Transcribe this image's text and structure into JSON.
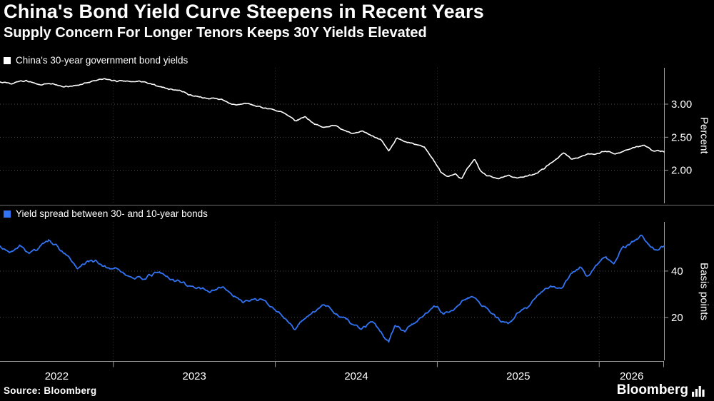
{
  "header": {
    "title": "China's Bond Yield Curve Steepens in Recent Years",
    "subtitle": "Supply Concern For Longer Tenors Keeps 30Y Yields Elevated"
  },
  "footer": {
    "source": "Source: Bloomberg",
    "brand": "Bloomberg"
  },
  "colors": {
    "background": "#000000",
    "text": "#ffffff",
    "grid": "#4a4a4a",
    "year_grid": "#323232",
    "axis": "#9b9b9b",
    "top_line": "#ffffff",
    "bottom_line": "#3173f2"
  },
  "x_axis": {
    "domain": [
      2022.3,
      2026.4
    ],
    "year_ticks": [
      2023,
      2024,
      2025,
      2026
    ],
    "labels": [
      "2022",
      "2023",
      "2024",
      "2025",
      "2026"
    ]
  },
  "chart_data": [
    {
      "type": "line",
      "title": "China's 30-year government bond yields",
      "ylabel": "Percent",
      "ylim": [
        1.5,
        3.55
      ],
      "grid": "dotted",
      "legend_position": "top-left",
      "yticks": [
        {
          "value": 3.0,
          "label": "3.00"
        },
        {
          "value": 2.5,
          "label": "2.50"
        },
        {
          "value": 2.0,
          "label": "2.00"
        }
      ],
      "series": [
        {
          "name": "China 30-year government bond yield",
          "color": "#ffffff",
          "unit": "percent",
          "points": [
            [
              2022.3,
              3.35
            ],
            [
              2022.38,
              3.32
            ],
            [
              2022.46,
              3.34
            ],
            [
              2022.54,
              3.29
            ],
            [
              2022.62,
              3.31
            ],
            [
              2022.7,
              3.27
            ],
            [
              2022.78,
              3.29
            ],
            [
              2022.86,
              3.33
            ],
            [
              2022.95,
              3.39
            ],
            [
              2023.02,
              3.36
            ],
            [
              2023.1,
              3.33
            ],
            [
              2023.18,
              3.35
            ],
            [
              2023.26,
              3.29
            ],
            [
              2023.34,
              3.24
            ],
            [
              2023.42,
              3.2
            ],
            [
              2023.5,
              3.12
            ],
            [
              2023.56,
              3.08
            ],
            [
              2023.62,
              3.1
            ],
            [
              2023.68,
              3.04
            ],
            [
              2023.76,
              3.0
            ],
            [
              2023.82,
              3.03
            ],
            [
              2023.9,
              2.97
            ],
            [
              2023.97,
              2.93
            ],
            [
              2024.03,
              2.88
            ],
            [
              2024.08,
              2.82
            ],
            [
              2024.13,
              2.76
            ],
            [
              2024.18,
              2.8
            ],
            [
              2024.24,
              2.7
            ],
            [
              2024.3,
              2.64
            ],
            [
              2024.36,
              2.68
            ],
            [
              2024.42,
              2.6
            ],
            [
              2024.48,
              2.54
            ],
            [
              2024.54,
              2.58
            ],
            [
              2024.6,
              2.5
            ],
            [
              2024.65,
              2.46
            ],
            [
              2024.7,
              2.3
            ],
            [
              2024.75,
              2.5
            ],
            [
              2024.8,
              2.44
            ],
            [
              2024.86,
              2.4
            ],
            [
              2024.92,
              2.36
            ],
            [
              2024.97,
              2.2
            ],
            [
              2025.02,
              2.0
            ],
            [
              2025.07,
              1.9
            ],
            [
              2025.11,
              1.94
            ],
            [
              2025.15,
              1.87
            ],
            [
              2025.19,
              2.05
            ],
            [
              2025.23,
              2.17
            ],
            [
              2025.27,
              1.98
            ],
            [
              2025.32,
              1.9
            ],
            [
              2025.38,
              1.86
            ],
            [
              2025.44,
              1.91
            ],
            [
              2025.5,
              1.88
            ],
            [
              2025.56,
              1.92
            ],
            [
              2025.62,
              1.97
            ],
            [
              2025.68,
              2.08
            ],
            [
              2025.73,
              2.18
            ],
            [
              2025.78,
              2.26
            ],
            [
              2025.83,
              2.16
            ],
            [
              2025.88,
              2.21
            ],
            [
              2025.93,
              2.26
            ],
            [
              2025.98,
              2.24
            ],
            [
              2026.04,
              2.29
            ],
            [
              2026.1,
              2.26
            ],
            [
              2026.16,
              2.31
            ],
            [
              2026.22,
              2.34
            ],
            [
              2026.28,
              2.36
            ],
            [
              2026.33,
              2.3
            ],
            [
              2026.4,
              2.27
            ]
          ]
        }
      ]
    },
    {
      "type": "line",
      "title": "Yield spread between 30- and 10-year bonds",
      "ylabel": "Basis points",
      "ylim": [
        1.5,
        61.2
      ],
      "grid": "dotted",
      "legend_position": "top-left",
      "yticks": [
        {
          "value": 40,
          "label": "40"
        },
        {
          "value": 20,
          "label": "20"
        }
      ],
      "series": [
        {
          "name": "30-year minus 10-year yield spread",
          "color": "#3173f2",
          "unit": "basis_points",
          "points": [
            [
              2022.3,
              50
            ],
            [
              2022.36,
              48
            ],
            [
              2022.42,
              52
            ],
            [
              2022.48,
              49
            ],
            [
              2022.54,
              51
            ],
            [
              2022.6,
              55
            ],
            [
              2022.66,
              51
            ],
            [
              2022.72,
              47
            ],
            [
              2022.78,
              41
            ],
            [
              2022.84,
              44
            ],
            [
              2022.9,
              43
            ],
            [
              2022.96,
              41
            ],
            [
              2023.04,
              40
            ],
            [
              2023.12,
              38
            ],
            [
              2023.2,
              37
            ],
            [
              2023.28,
              40
            ],
            [
              2023.36,
              36
            ],
            [
              2023.44,
              35
            ],
            [
              2023.52,
              33
            ],
            [
              2023.6,
              31
            ],
            [
              2023.68,
              33
            ],
            [
              2023.76,
              29
            ],
            [
              2023.84,
              27
            ],
            [
              2023.92,
              28
            ],
            [
              2024.0,
              24
            ],
            [
              2024.06,
              20
            ],
            [
              2024.12,
              16
            ],
            [
              2024.18,
              21
            ],
            [
              2024.24,
              23
            ],
            [
              2024.3,
              25
            ],
            [
              2024.36,
              22
            ],
            [
              2024.42,
              20
            ],
            [
              2024.48,
              17
            ],
            [
              2024.54,
              16
            ],
            [
              2024.6,
              19
            ],
            [
              2024.66,
              13
            ],
            [
              2024.7,
              9
            ],
            [
              2024.74,
              17
            ],
            [
              2024.8,
              15
            ],
            [
              2024.86,
              18
            ],
            [
              2024.92,
              22
            ],
            [
              2024.98,
              26
            ],
            [
              2025.04,
              22
            ],
            [
              2025.1,
              24
            ],
            [
              2025.16,
              28
            ],
            [
              2025.22,
              30
            ],
            [
              2025.28,
              24
            ],
            [
              2025.34,
              22
            ],
            [
              2025.4,
              19
            ],
            [
              2025.46,
              18
            ],
            [
              2025.52,
              23
            ],
            [
              2025.58,
              27
            ],
            [
              2025.64,
              32
            ],
            [
              2025.7,
              34
            ],
            [
              2025.76,
              31
            ],
            [
              2025.82,
              37
            ],
            [
              2025.88,
              41
            ],
            [
              2025.93,
              38
            ],
            [
              2025.98,
              43
            ],
            [
              2026.04,
              47
            ],
            [
              2026.09,
              44
            ],
            [
              2026.14,
              49
            ],
            [
              2026.2,
              53
            ],
            [
              2026.26,
              56
            ],
            [
              2026.31,
              52
            ],
            [
              2026.36,
              49
            ],
            [
              2026.4,
              51
            ]
          ]
        }
      ]
    }
  ]
}
